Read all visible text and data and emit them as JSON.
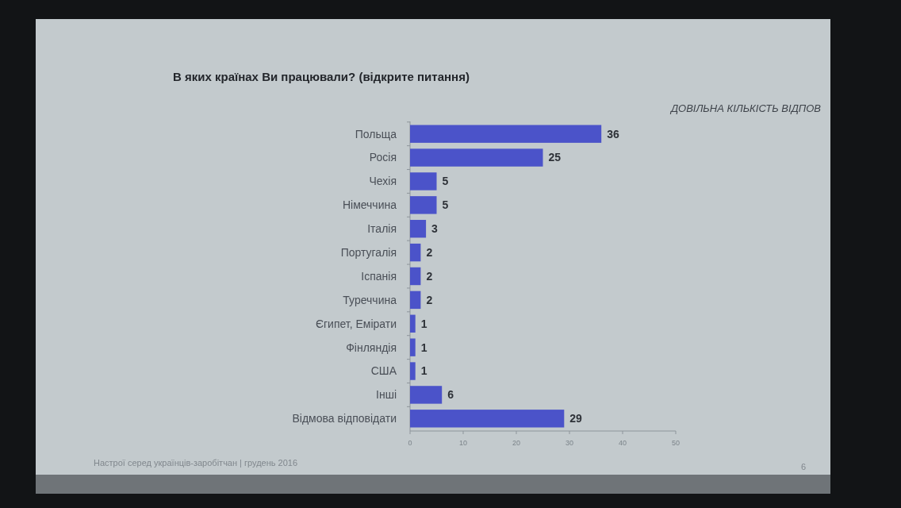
{
  "chart_data": {
    "type": "bar",
    "orientation": "horizontal",
    "title": "В яких країнах Ви працювали? (відкрите питання)",
    "subtitle": "ДОВІЛЬНА КІЛЬКІСТЬ ВІДПОВ",
    "categories": [
      "Польща",
      "Росія",
      "Чехія",
      "Німеччина",
      "Італія",
      "Португалія",
      "Іспанія",
      "Туреччина",
      "Єгипет, Емірати",
      "Фінляндія",
      "США",
      "Інші",
      "Відмова відповідати"
    ],
    "values": [
      36,
      25,
      5,
      5,
      3,
      2,
      2,
      2,
      1,
      1,
      1,
      6,
      29
    ],
    "color": "#4b53c9",
    "xlim": [
      0,
      50
    ],
    "xticks": [
      0,
      10,
      20,
      30,
      40,
      50
    ],
    "data_labels": true,
    "annotations": [
      "Настрої серед українців-заробітчан  |  грудень 2016",
      "6"
    ]
  }
}
